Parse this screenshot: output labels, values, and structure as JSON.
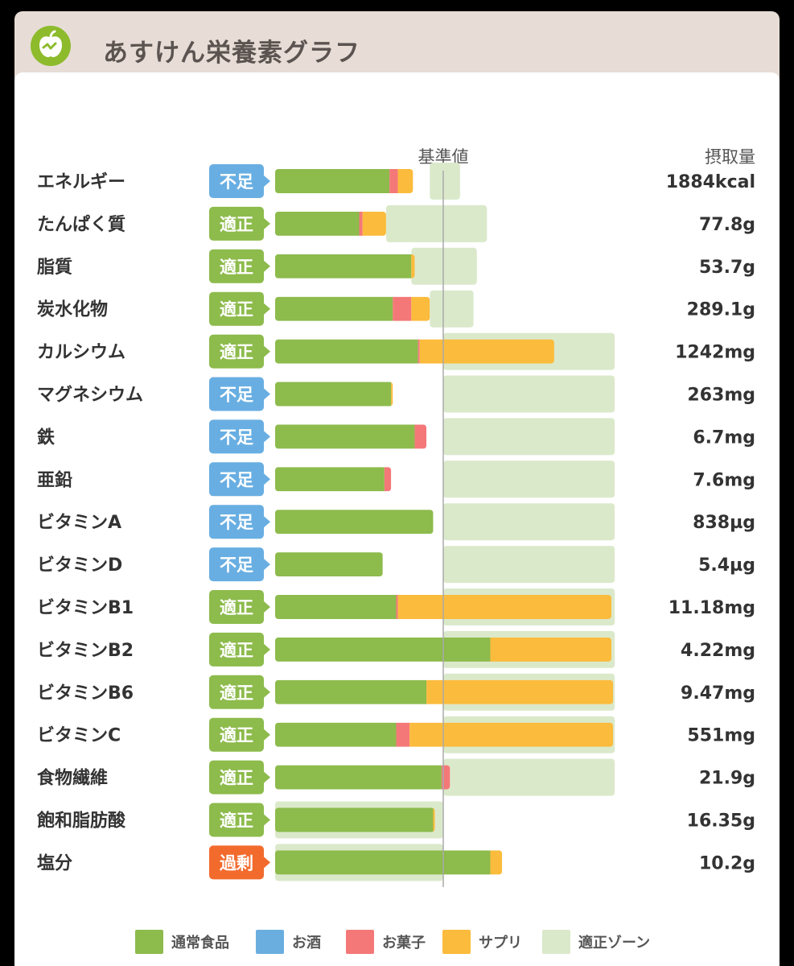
{
  "app": {
    "title": "あすけん栄養素グラフ",
    "logo_icon": "apple-icon"
  },
  "headers": {
    "reference": "基準値",
    "intake": "摂取量"
  },
  "colors": {
    "normal": "#8dbb4c",
    "alcohol": "#6aaee0",
    "snack": "#f47878",
    "supplement": "#fbbb3c",
    "zone": "#dbe9cb",
    "badge_insufficient": "#68aee2",
    "badge_ok": "#8dbb4c",
    "badge_excess": "#f26b2d"
  },
  "chart_data": {
    "type": "bar",
    "orientation": "horizontal",
    "stacked": true,
    "note": "Values are percent of reference value (基準値 = 100)",
    "xlim": [
      0,
      202
    ],
    "series_names": [
      "通常食品",
      "お酒",
      "お菓子",
      "サプリ"
    ],
    "legend": [
      {
        "key": "normal",
        "label": "通常食品"
      },
      {
        "key": "alcohol",
        "label": "お酒"
      },
      {
        "key": "snack",
        "label": "お菓子"
      },
      {
        "key": "supplement",
        "label": "サプリ"
      },
      {
        "key": "zone",
        "label": "適正ゾーン"
      }
    ],
    "rows": [
      {
        "name": "エネルギー",
        "status": "不足",
        "status_key": "insufficient",
        "normal": 68,
        "alcohol": 0,
        "snack": 5,
        "supplement": 9,
        "zone": [
          92,
          110
        ],
        "intake": "1884kcal"
      },
      {
        "name": "たんぱく質",
        "status": "適正",
        "status_key": "ok",
        "normal": 50,
        "alcohol": 0,
        "snack": 2,
        "supplement": 14,
        "zone": [
          66,
          126
        ],
        "intake": "77.8g"
      },
      {
        "name": "脂質",
        "status": "適正",
        "status_key": "ok",
        "normal": 81,
        "alcohol": 0,
        "snack": 0,
        "supplement": 2,
        "zone": [
          81,
          120
        ],
        "intake": "53.7g"
      },
      {
        "name": "炭水化物",
        "status": "適正",
        "status_key": "ok",
        "normal": 70,
        "alcohol": 0,
        "snack": 11,
        "supplement": 11,
        "zone": [
          92,
          118
        ],
        "intake": "289.1g"
      },
      {
        "name": "カルシウム",
        "status": "適正",
        "status_key": "ok",
        "normal": 85,
        "alcohol": 0,
        "snack": 1,
        "supplement": 80,
        "zone": [
          100,
          202
        ],
        "intake": "1242mg"
      },
      {
        "name": "マグネシウム",
        "status": "不足",
        "status_key": "insufficient",
        "normal": 69,
        "alcohol": 0,
        "snack": 0,
        "supplement": 1,
        "zone": [
          100,
          202
        ],
        "intake": "263mg"
      },
      {
        "name": "鉄",
        "status": "不足",
        "status_key": "insufficient",
        "normal": 83,
        "alcohol": 0,
        "snack": 7,
        "supplement": 0,
        "zone": [
          100,
          202
        ],
        "intake": "6.7mg"
      },
      {
        "name": "亜鉛",
        "status": "不足",
        "status_key": "insufficient",
        "normal": 65,
        "alcohol": 0,
        "snack": 4,
        "supplement": 0,
        "zone": [
          100,
          202
        ],
        "intake": "7.6mg"
      },
      {
        "name": "ビタミンA",
        "status": "不足",
        "status_key": "insufficient",
        "normal": 94,
        "alcohol": 0,
        "snack": 0,
        "supplement": 0,
        "zone": [
          100,
          202
        ],
        "intake": "838µg"
      },
      {
        "name": "ビタミンD",
        "status": "不足",
        "status_key": "insufficient",
        "normal": 64,
        "alcohol": 0,
        "snack": 0,
        "supplement": 0,
        "zone": [
          100,
          202
        ],
        "intake": "5.4µg"
      },
      {
        "name": "ビタミンB1",
        "status": "適正",
        "status_key": "ok",
        "normal": 72,
        "alcohol": 0,
        "snack": 1,
        "supplement": 127,
        "zone": [
          100,
          202
        ],
        "intake": "11.18mg"
      },
      {
        "name": "ビタミンB2",
        "status": "適正",
        "status_key": "ok",
        "normal": 128,
        "alcohol": 0,
        "snack": 0,
        "supplement": 72,
        "zone": [
          100,
          202
        ],
        "intake": "4.22mg"
      },
      {
        "name": "ビタミンB6",
        "status": "適正",
        "status_key": "ok",
        "normal": 90,
        "alcohol": 0,
        "snack": 0,
        "supplement": 111,
        "zone": [
          100,
          202
        ],
        "intake": "9.47mg"
      },
      {
        "name": "ビタミンC",
        "status": "適正",
        "status_key": "ok",
        "normal": 72,
        "alcohol": 0,
        "snack": 8,
        "supplement": 121,
        "zone": [
          100,
          202
        ],
        "intake": "551mg"
      },
      {
        "name": "食物繊維",
        "status": "適正",
        "status_key": "ok",
        "normal": 99,
        "alcohol": 0,
        "snack": 5,
        "supplement": 0,
        "zone": [
          100,
          202
        ],
        "intake": "21.9g"
      },
      {
        "name": "飽和脂肪酸",
        "status": "適正",
        "status_key": "ok",
        "normal": 94,
        "alcohol": 0,
        "snack": 0,
        "supplement": 1,
        "zone": [
          0,
          100
        ],
        "intake": "16.35g"
      },
      {
        "name": "塩分",
        "status": "過剰",
        "status_key": "excess",
        "normal": 128,
        "alcohol": 0,
        "snack": 0,
        "supplement": 7,
        "zone": [
          0,
          100
        ],
        "intake": "10.2g"
      }
    ]
  }
}
